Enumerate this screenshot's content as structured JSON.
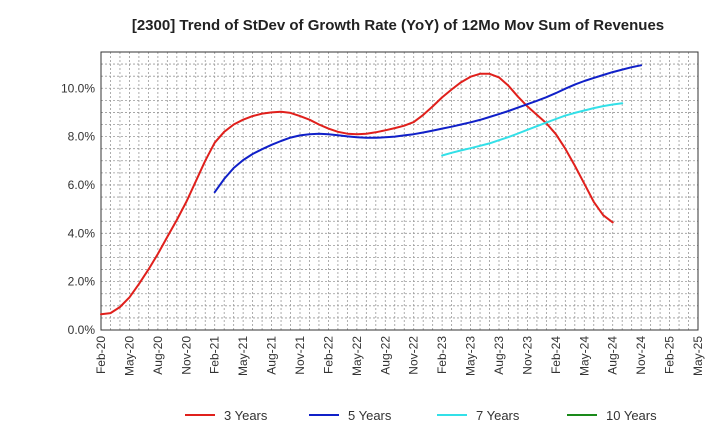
{
  "chart_data": {
    "type": "line",
    "title": "[2300]  Trend of StDev of Growth Rate (YoY) of 12Mo Mov Sum of Revenues",
    "xlabel": "",
    "ylabel": "",
    "ylim": [
      0,
      0.115
    ],
    "y_ticks": [
      {
        "value": 0.0,
        "label": "0.0%"
      },
      {
        "value": 0.02,
        "label": "2.0%"
      },
      {
        "value": 0.04,
        "label": "4.0%"
      },
      {
        "value": 0.06,
        "label": "6.0%"
      },
      {
        "value": 0.08,
        "label": "8.0%"
      },
      {
        "value": 0.1,
        "label": "10.0%"
      }
    ],
    "x_ticks": [
      {
        "value": 0,
        "label": "Feb-20"
      },
      {
        "value": 3,
        "label": "May-20"
      },
      {
        "value": 6,
        "label": "Aug-20"
      },
      {
        "value": 9,
        "label": "Nov-20"
      },
      {
        "value": 12,
        "label": "Feb-21"
      },
      {
        "value": 15,
        "label": "May-21"
      },
      {
        "value": 18,
        "label": "Aug-21"
      },
      {
        "value": 21,
        "label": "Nov-21"
      },
      {
        "value": 24,
        "label": "Feb-22"
      },
      {
        "value": 27,
        "label": "May-22"
      },
      {
        "value": 30,
        "label": "Aug-22"
      },
      {
        "value": 33,
        "label": "Nov-22"
      },
      {
        "value": 36,
        "label": "Feb-23"
      },
      {
        "value": 39,
        "label": "May-23"
      },
      {
        "value": 42,
        "label": "Aug-23"
      },
      {
        "value": 45,
        "label": "Nov-23"
      },
      {
        "value": 48,
        "label": "Feb-24"
      },
      {
        "value": 51,
        "label": "May-24"
      },
      {
        "value": 54,
        "label": "Aug-24"
      },
      {
        "value": 57,
        "label": "Nov-24"
      },
      {
        "value": 60,
        "label": "Feb-25"
      },
      {
        "value": 63,
        "label": "May-25"
      }
    ],
    "xlim": [
      0,
      63
    ],
    "grid": true,
    "legend_position": "bottom",
    "series": [
      {
        "name": "3 Years",
        "color": "#e0201c",
        "start": 0,
        "values": [
          0.0065,
          0.007,
          0.0095,
          0.0135,
          0.019,
          0.025,
          0.0315,
          0.0385,
          0.0455,
          0.053,
          0.0615,
          0.07,
          0.0775,
          0.082,
          0.085,
          0.087,
          0.0885,
          0.0895,
          0.09,
          0.0903,
          0.0898,
          0.0885,
          0.087,
          0.085,
          0.0833,
          0.082,
          0.0812,
          0.081,
          0.0812,
          0.0818,
          0.0826,
          0.0835,
          0.0845,
          0.086,
          0.089,
          0.0925,
          0.0962,
          0.0995,
          0.1025,
          0.1048,
          0.106,
          0.106,
          0.1045,
          0.101,
          0.0965,
          0.0925,
          0.089,
          0.0855,
          0.081,
          0.075,
          0.068,
          0.0605,
          0.053,
          0.0475,
          0.0445
        ]
      },
      {
        "name": "5 Years",
        "color": "#1020c8",
        "start": 12,
        "values": [
          0.057,
          0.0625,
          0.067,
          0.0703,
          0.0728,
          0.0748,
          0.0766,
          0.0782,
          0.0796,
          0.0805,
          0.081,
          0.0812,
          0.081,
          0.0806,
          0.0801,
          0.0797,
          0.0795,
          0.0795,
          0.0797,
          0.08,
          0.0805,
          0.081,
          0.0817,
          0.0825,
          0.0833,
          0.0841,
          0.085,
          0.0859,
          0.0869,
          0.0881,
          0.0893,
          0.0906,
          0.092,
          0.0934,
          0.0948,
          0.0963,
          0.098,
          0.0998,
          0.1015,
          0.103,
          0.1043,
          0.1055,
          0.1067,
          0.1077,
          0.1087,
          0.1095
        ]
      },
      {
        "name": "7 Years",
        "color": "#33e0e8",
        "start": 36,
        "values": [
          0.0722,
          0.0733,
          0.0743,
          0.0752,
          0.0762,
          0.0772,
          0.0785,
          0.0798,
          0.0813,
          0.0828,
          0.0843,
          0.0858,
          0.0873,
          0.0887,
          0.0898,
          0.0908,
          0.0918,
          0.0926,
          0.0933,
          0.0938
        ]
      },
      {
        "name": "10 Years",
        "color": "#1a8a1a",
        "start": 0,
        "values": []
      }
    ]
  }
}
